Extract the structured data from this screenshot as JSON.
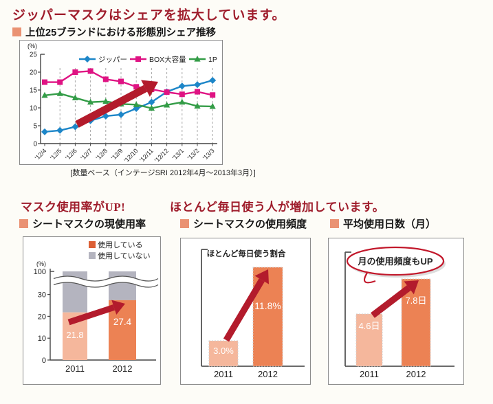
{
  "top": {
    "headline": "ジッパーマスクはシェアを拡大しています。"
  },
  "bottom": {
    "left_headline": "マスク使用率がUP!",
    "right_headline": "ほとんど毎日使う人が増加しています。"
  },
  "colors": {
    "headline_red": "#9f1d2c",
    "title_bullet_orange": "#ea9273",
    "arrow_red": "#b31b2c",
    "bar_2011_light_orange": "#f5b79c",
    "bar_2012_orange": "#ec8254",
    "bar_gray": "#b4b4bf",
    "legend_using_orange": "#dc5f35",
    "line_blue": "#1d86c8",
    "line_magenta": "#df1383",
    "line_green": "#339c47"
  },
  "chart_data": [
    {
      "type": "line",
      "title": "上位25ブランドにおける形態別シェア推移",
      "ylabel": "(%)",
      "ylim": [
        0,
        25
      ],
      "yticks": [
        0,
        5,
        10,
        15,
        20,
        25
      ],
      "grid": "vertical-dashed",
      "legend_position": "top-inside",
      "annotation": "up-trend-arrow",
      "caption": "[数量ベース（インテージSRI 2012年4月～2013年3月）]",
      "categories": [
        "'12/4",
        "'12/5",
        "'12/6",
        "'12/7",
        "'12/8",
        "'12/9",
        "'12/10",
        "'12/11",
        "'12/12",
        "'13/1",
        "'13/2",
        "'13/3"
      ],
      "series": [
        {
          "name": "ジッパー",
          "marker": "diamond",
          "color": "#1d86c8",
          "values": [
            3.3,
            3.7,
            4.7,
            6.4,
            7.7,
            8.1,
            9.8,
            11.6,
            14.5,
            16.1,
            16.5,
            17.7
          ]
        },
        {
          "name": "BOX大容量",
          "marker": "square",
          "color": "#df1383",
          "values": [
            17.2,
            17.2,
            20.0,
            20.3,
            18.0,
            17.4,
            15.9,
            15.2,
            14.4,
            13.8,
            14.5,
            13.6
          ]
        },
        {
          "name": "1P",
          "marker": "triangle",
          "color": "#339c47",
          "values": [
            13.5,
            14.0,
            12.8,
            11.6,
            11.8,
            11.1,
            10.9,
            9.9,
            10.8,
            11.6,
            10.5,
            10.4
          ]
        }
      ]
    },
    {
      "type": "bar",
      "subtype": "stacked",
      "title": "シートマスクの現使用率",
      "ylabel": "(%)",
      "yticks": [
        0,
        10,
        20,
        30,
        100
      ],
      "axis_break_between": [
        30,
        100
      ],
      "annotation": "up-trend-arrow",
      "categories": [
        "2011",
        "2012"
      ],
      "series": [
        {
          "name": "使用している",
          "values": [
            21.8,
            27.4
          ],
          "colors": [
            "#f5b79c",
            "#ec8254"
          ],
          "legend_color": "#dc5f35"
        },
        {
          "name": "使用していない",
          "values": [
            78.2,
            72.6
          ],
          "color": "#b4b4bf"
        }
      ],
      "bar_labels": [
        "21.8",
        "27.4"
      ]
    },
    {
      "type": "bar",
      "title": "シートマスクの使用頻度",
      "inner_title": "ほとんど毎日使う割合",
      "annotation": "up-trend-arrow",
      "categories": [
        "2011",
        "2012"
      ],
      "values": [
        3.0,
        11.8
      ],
      "bar_labels": [
        "3.0%",
        "11.8%"
      ],
      "bar_colors": [
        "#f5b79c",
        "#ec8254"
      ]
    },
    {
      "type": "bar",
      "title": "平均使用日数（月）",
      "bubble_note": "月の使用頻度もUP",
      "unit": "日",
      "annotation": "up-trend-arrow",
      "categories": [
        "2011",
        "2012"
      ],
      "values": [
        4.6,
        7.8
      ],
      "bar_labels": [
        "4.6日",
        "7.8日"
      ],
      "bar_colors": [
        "#f5b79c",
        "#ec8254"
      ]
    }
  ]
}
